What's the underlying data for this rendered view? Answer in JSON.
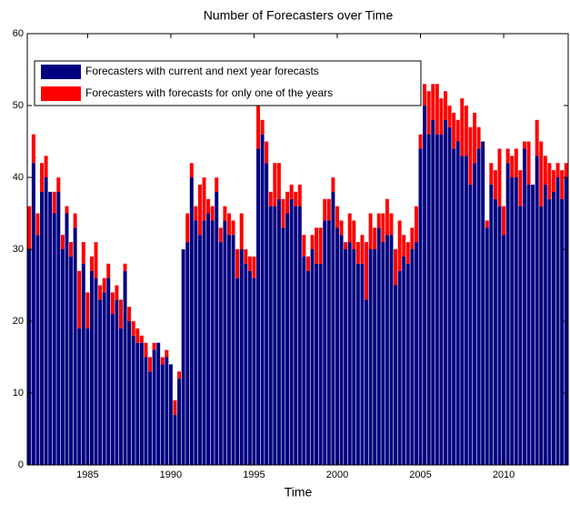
{
  "chart_data": {
    "type": "bar",
    "stacked": true,
    "title": "Number of Forecasters over Time",
    "xlabel": "Time",
    "x": [
      1981.5,
      1981.75,
      1982,
      1982.25,
      1982.5,
      1982.75,
      1983,
      1983.25,
      1983.5,
      1983.75,
      1984,
      1984.25,
      1984.5,
      1984.75,
      1985,
      1985.25,
      1985.5,
      1985.75,
      1986,
      1986.25,
      1986.5,
      1986.75,
      1987,
      1987.25,
      1987.5,
      1987.75,
      1988,
      1988.25,
      1988.5,
      1988.75,
      1989,
      1989.25,
      1989.5,
      1989.75,
      1990,
      1990.25,
      1990.5,
      1990.75,
      1991,
      1991.25,
      1991.5,
      1991.75,
      1992,
      1992.25,
      1992.5,
      1992.75,
      1993,
      1993.25,
      1993.5,
      1993.75,
      1994,
      1994.25,
      1994.5,
      1994.75,
      1995,
      1995.25,
      1995.5,
      1995.75,
      1996,
      1996.25,
      1996.5,
      1996.75,
      1997,
      1997.25,
      1997.5,
      1997.75,
      1998,
      1998.25,
      1998.5,
      1998.75,
      1999,
      1999.25,
      1999.5,
      1999.75,
      2000,
      2000.25,
      2000.5,
      2000.75,
      2001,
      2001.25,
      2001.5,
      2001.75,
      2002,
      2002.25,
      2002.5,
      2002.75,
      2003,
      2003.25,
      2003.5,
      2003.75,
      2004,
      2004.25,
      2004.5,
      2004.75,
      2005,
      2005.25,
      2005.5,
      2005.75,
      2006,
      2006.25,
      2006.5,
      2006.75,
      2007,
      2007.25,
      2007.5,
      2007.75,
      2008,
      2008.25,
      2008.5,
      2008.75,
      2009,
      2009.25,
      2009.5,
      2009.75,
      2010,
      2010.25,
      2010.5,
      2010.75,
      2011,
      2011.25,
      2011.5,
      2011.75,
      2012,
      2012.25,
      2012.5,
      2012.75,
      2013,
      2013.25,
      2013.5,
      2013.75
    ],
    "series": [
      {
        "name": "Forecasters with current and next year forecasts",
        "color": "#000080",
        "values": [
          30,
          42,
          32,
          38,
          40,
          38,
          35,
          38,
          30,
          35,
          29,
          33,
          19,
          28,
          19,
          27,
          26,
          23,
          24,
          26,
          21,
          23,
          19,
          27,
          20,
          18,
          17,
          17,
          15,
          13,
          16,
          17,
          14,
          15,
          14,
          7,
          12,
          30,
          31,
          40,
          34,
          32,
          34,
          35,
          34,
          38,
          31,
          34,
          32,
          32,
          26,
          30,
          28,
          27,
          26,
          44,
          46,
          42,
          36,
          36,
          37,
          33,
          35,
          37,
          36,
          36,
          29,
          27,
          30,
          28,
          28,
          34,
          34,
          38,
          33,
          32,
          30,
          31,
          30,
          28,
          28,
          23,
          30,
          30,
          33,
          31,
          32,
          32,
          25,
          27,
          29,
          28,
          30,
          31,
          44,
          50,
          46,
          48,
          46,
          46,
          48,
          47,
          44,
          45,
          43,
          43,
          39,
          42,
          44,
          45,
          33,
          39,
          37,
          36,
          32,
          42,
          40,
          40,
          36,
          44,
          39,
          39,
          43,
          36,
          39,
          37,
          38,
          40,
          37,
          40
        ]
      },
      {
        "name": "Forecasters with forecasts for only one of the years",
        "color": "#ff0000",
        "values": [
          6,
          4,
          3,
          4,
          3,
          0,
          3,
          2,
          2,
          1,
          2,
          2,
          8,
          3,
          5,
          2,
          5,
          2,
          2,
          2,
          3,
          2,
          4,
          1,
          2,
          2,
          2,
          1,
          2,
          2,
          1,
          0,
          1,
          1,
          0,
          2,
          1,
          0,
          4,
          2,
          2,
          7,
          6,
          2,
          2,
          2,
          2,
          2,
          3,
          2,
          4,
          5,
          2,
          2,
          3,
          6,
          2,
          3,
          2,
          6,
          5,
          4,
          3,
          2,
          2,
          3,
          3,
          2,
          2,
          5,
          5,
          3,
          3,
          2,
          3,
          2,
          1,
          4,
          4,
          3,
          4,
          8,
          5,
          3,
          2,
          4,
          5,
          3,
          5,
          7,
          3,
          3,
          3,
          5,
          2,
          3,
          6,
          5,
          7,
          5,
          4,
          3,
          5,
          3,
          8,
          7,
          8,
          7,
          3,
          0,
          1,
          3,
          4,
          8,
          4,
          2,
          3,
          4,
          5,
          1,
          6,
          0,
          5,
          9,
          4,
          5,
          3,
          2,
          4,
          2
        ]
      }
    ],
    "xlim": [
      1981.375,
      2013.875
    ],
    "xticks": [
      1985,
      1990,
      1995,
      2000,
      2005,
      2010
    ],
    "ylim": [
      0,
      60
    ],
    "yticks": [
      0,
      10,
      20,
      30,
      40,
      50,
      60
    ],
    "legend": "upper-left"
  }
}
